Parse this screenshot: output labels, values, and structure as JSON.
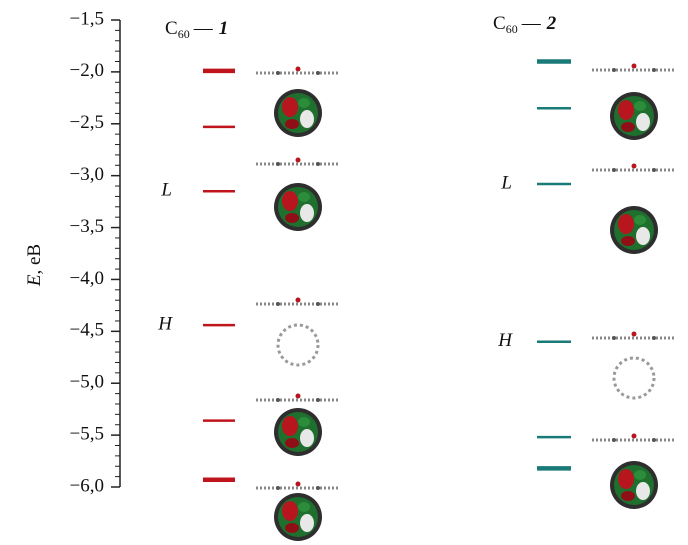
{
  "chart_data": {
    "type": "levels",
    "ylabel_main": "E",
    "ylabel_rest": ", eB",
    "ylim": [
      -6.0,
      -1.5
    ],
    "yticks": [
      {
        "value": -1.5,
        "label": "−1,5"
      },
      {
        "value": -2.0,
        "label": "−2,0"
      },
      {
        "value": -2.5,
        "label": "−2,5"
      },
      {
        "value": -3.0,
        "label": "−3,0"
      },
      {
        "value": -3.5,
        "label": "−3,5"
      },
      {
        "value": -4.0,
        "label": "−4,0"
      },
      {
        "value": -4.5,
        "label": "−4,5"
      },
      {
        "value": -5.0,
        "label": "−5,0"
      },
      {
        "value": -5.5,
        "label": "−5,5"
      },
      {
        "value": -6.0,
        "label": "−6,0"
      }
    ],
    "series": [
      {
        "name_main": "C",
        "name_sub": "60",
        "name_dash": "—",
        "name_num": "1",
        "color": "#c0141c",
        "values": [
          -1.99,
          -2.53,
          -3.15,
          -4.44,
          -5.36,
          -5.93
        ],
        "thick": [
          true,
          false,
          false,
          false,
          false,
          true
        ],
        "level_labels": [
          null,
          null,
          "L",
          "H",
          null,
          null
        ]
      },
      {
        "name_main": "C",
        "name_sub": "60",
        "name_dash": "—",
        "name_num": "2",
        "color": "#1a7a78",
        "values": [
          -1.9,
          -2.35,
          -3.08,
          -4.6,
          -5.52,
          -5.82
        ],
        "thick": [
          true,
          false,
          false,
          false,
          false,
          true
        ],
        "level_labels": [
          null,
          null,
          "L",
          "H",
          null,
          null
        ]
      }
    ]
  }
}
